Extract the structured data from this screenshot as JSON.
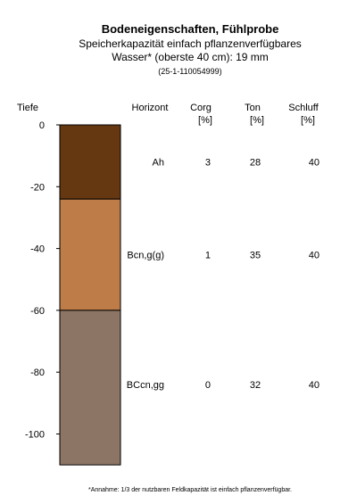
{
  "chart_data": {
    "type": "soil_profile",
    "title": "Bodeneigenschaften, Fühlprobe",
    "subtitle_1": "Speicherkapazität einfach pflanzenverfügbares",
    "subtitle_2": "Wasser* (oberste 40 cm): 19 mm",
    "subtitle_3": "(25-1-110054999)",
    "y_axis_label": "Tiefe",
    "ylim": [
      -110,
      0
    ],
    "yticks": [
      0,
      -20,
      -40,
      -60,
      -80,
      -100
    ],
    "columns": [
      {
        "key": "horizont",
        "label_1": "Horizont",
        "label_2": ""
      },
      {
        "key": "corg",
        "label_1": "Corg",
        "label_2": "[%]"
      },
      {
        "key": "ton",
        "label_1": "Ton",
        "label_2": "[%]"
      },
      {
        "key": "schluff",
        "label_1": "Schluff",
        "label_2": "[%]"
      }
    ],
    "horizons": [
      {
        "top": 0,
        "bottom": -24,
        "horizont": "Ah",
        "corg": "3",
        "ton": "28",
        "schluff": "40",
        "color": "#653812"
      },
      {
        "top": -24,
        "bottom": -60,
        "horizont": "Bcn,g(g)",
        "corg": "1",
        "ton": "35",
        "schluff": "40",
        "color": "#bd7c48"
      },
      {
        "top": -60,
        "bottom": -110,
        "horizont": "BCcn,gg",
        "corg": "0",
        "ton": "32",
        "schluff": "40",
        "color": "#8c7565"
      }
    ],
    "footnote": "*Annahme: 1/3 der nutzbaren Feldkapazität ist einfach pflanzenverfügbar."
  }
}
